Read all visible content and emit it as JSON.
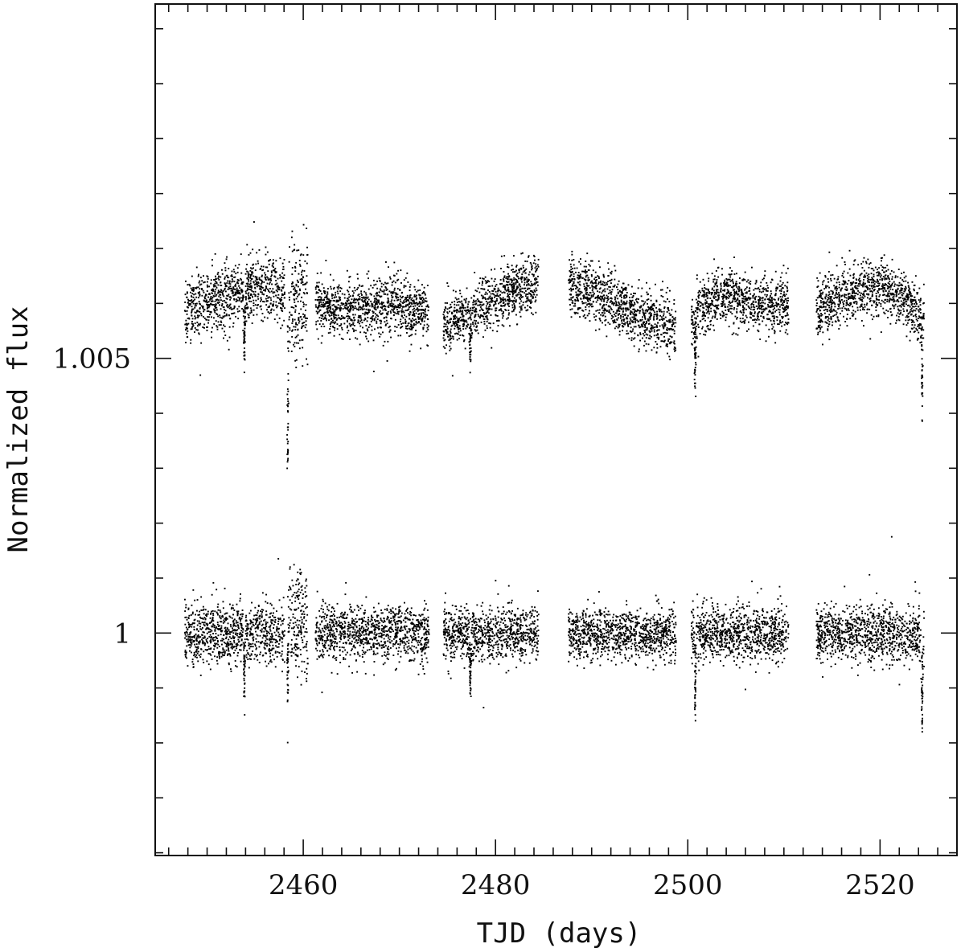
{
  "chart_data": {
    "type": "scatter",
    "title": "",
    "xlabel": "TJD (days)",
    "ylabel": "Normalized flux",
    "xlim": [
      2444.6,
      2528.0
    ],
    "ylim": [
      0.99595,
      1.01145
    ],
    "x_major_ticks": [
      2460,
      2480,
      2500,
      2520
    ],
    "x_minor_step": 2,
    "y_major_ticks": [
      1,
      1.005
    ],
    "y_tick_labels": [
      "1",
      "1.005"
    ],
    "y_minor_step": 0.001,
    "grid": false,
    "legend": "none",
    "marker_color": "#000000",
    "series": [
      {
        "offset_center": 1.0061,
        "segments": [
          {
            "x": [
              2447.6,
              2458.0
            ],
            "level": [
              1.0059,
              1.0061,
              1.0063,
              1.0062
            ],
            "spread": 0.0005
          },
          {
            "x": [
              2458.3,
              2460.4
            ],
            "level": [
              1.006,
              1.006
            ],
            "spread": 0.0009
          },
          {
            "x": [
              2461.2,
              2473.0
            ],
            "level": [
              1.006,
              1.0059,
              1.006,
              1.0058
            ],
            "spread": 0.00045
          },
          {
            "x": [
              2474.5,
              2484.4
            ],
            "level": [
              1.0056,
              1.0059,
              1.0062,
              1.0064
            ],
            "spread": 0.00045
          },
          {
            "x": [
              2487.5,
              2498.7
            ],
            "level": [
              1.0064,
              1.0061,
              1.0058,
              1.0056
            ],
            "spread": 0.00045
          },
          {
            "x": [
              2500.3,
              2510.4
            ],
            "level": [
              1.0058,
              1.0062,
              1.006,
              1.006
            ],
            "spread": 0.00045
          },
          {
            "x": [
              2513.3,
              2524.5
            ],
            "level": [
              1.0059,
              1.0062,
              1.0063,
              1.0058
            ],
            "spread": 0.00045
          }
        ],
        "dips": [
          {
            "x": 2453.8,
            "depth": 0.0011
          },
          {
            "x": 2458.3,
            "depth": 0.003
          },
          {
            "x": 2477.3,
            "depth": 0.0011
          },
          {
            "x": 2500.7,
            "depth": 0.0013
          },
          {
            "x": 2524.3,
            "depth": 0.0017
          }
        ]
      },
      {
        "offset_center": 1.0,
        "segments": [
          {
            "x": [
              2447.6,
              2458.0
            ],
            "level": [
              1.0,
              1.0,
              1.0,
              1.0
            ],
            "spread": 0.0005
          },
          {
            "x": [
              2458.3,
              2460.4
            ],
            "level": [
              1.0003,
              1.0001
            ],
            "spread": 0.0009
          },
          {
            "x": [
              2461.2,
              2473.0
            ],
            "level": [
              1.0,
              1.0,
              1.0,
              1.0
            ],
            "spread": 0.00045
          },
          {
            "x": [
              2474.5,
              2484.4
            ],
            "level": [
              1.0,
              1.0,
              1.0,
              1.0
            ],
            "spread": 0.00045
          },
          {
            "x": [
              2487.5,
              2498.7
            ],
            "level": [
              1.0,
              1.0,
              1.0,
              1.0
            ],
            "spread": 0.00042
          },
          {
            "x": [
              2500.3,
              2510.4
            ],
            "level": [
              1.0,
              1.0,
              1.0,
              1.0
            ],
            "spread": 0.00045
          },
          {
            "x": [
              2513.3,
              2524.5
            ],
            "level": [
              1.0,
              1.0,
              1.0,
              1.0
            ],
            "spread": 0.00045
          }
        ],
        "dips": [
          {
            "x": 2453.8,
            "depth": 0.0011
          },
          {
            "x": 2458.3,
            "depth": 0.0012
          },
          {
            "x": 2477.3,
            "depth": 0.0011
          },
          {
            "x": 2500.7,
            "depth": 0.0013
          },
          {
            "x": 2524.3,
            "depth": 0.0017
          }
        ]
      }
    ]
  }
}
